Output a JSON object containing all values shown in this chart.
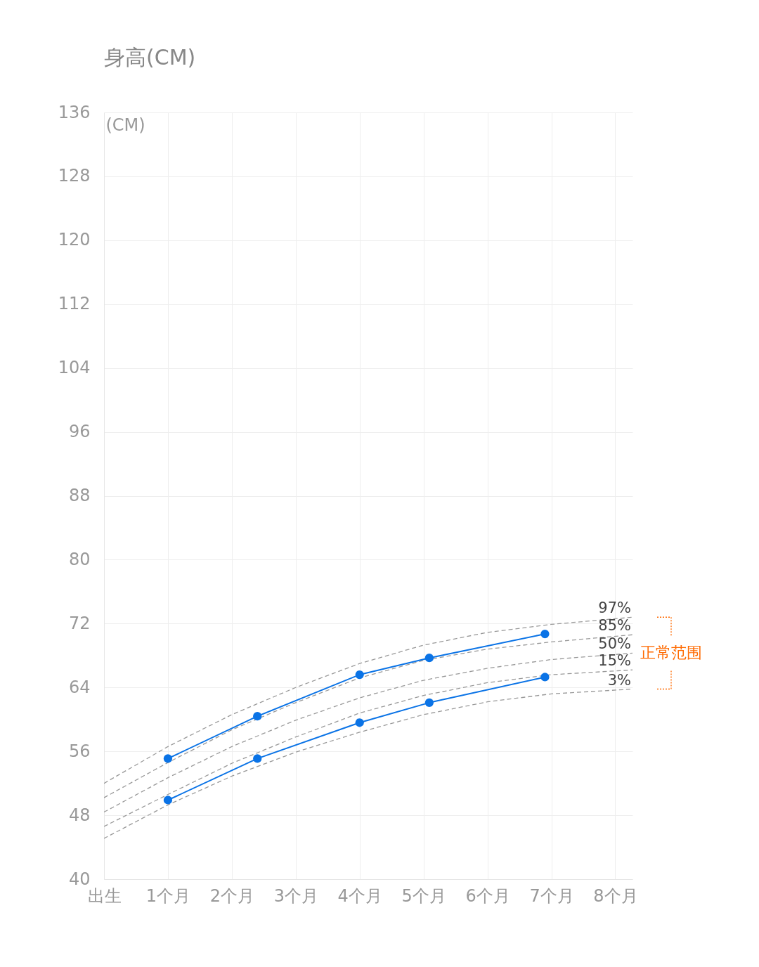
{
  "chart_data": {
    "type": "line",
    "title": "身高(CM)",
    "ylabel": "(CM)",
    "xlim": [
      0,
      8.27
    ],
    "xticks": [
      {
        "value": 0,
        "label": "出生"
      },
      {
        "value": 1,
        "label": "1个月"
      },
      {
        "value": 2,
        "label": "2个月"
      },
      {
        "value": 3,
        "label": "3个月"
      },
      {
        "value": 4,
        "label": "4个月"
      },
      {
        "value": 5,
        "label": "5个月"
      },
      {
        "value": 6,
        "label": "6个月"
      },
      {
        "value": 7,
        "label": "7个月"
      },
      {
        "value": 8,
        "label": "8个月"
      }
    ],
    "ylim": [
      40,
      136
    ],
    "yticks": [
      40,
      48,
      56,
      64,
      72,
      80,
      88,
      96,
      104,
      112,
      120,
      128,
      136
    ],
    "grid": true,
    "series": [
      {
        "name": "97%",
        "color": "#999999",
        "line_style": "dashed",
        "marker": "none",
        "x": [
          0,
          1,
          2,
          3,
          4,
          5,
          6,
          7,
          8.27
        ],
        "values": [
          52.0,
          56.6,
          60.6,
          64.0,
          67.0,
          69.3,
          70.9,
          71.9,
          72.8
        ]
      },
      {
        "name": "85%",
        "color": "#999999",
        "line_style": "dashed",
        "marker": "none",
        "x": [
          0,
          1,
          2,
          3,
          4,
          5,
          6,
          7,
          8.27
        ],
        "values": [
          50.2,
          54.6,
          58.7,
          62.1,
          65.2,
          67.4,
          68.8,
          69.7,
          70.6
        ]
      },
      {
        "name": "50%",
        "color": "#999999",
        "line_style": "dashed",
        "marker": "none",
        "x": [
          0,
          1,
          2,
          3,
          4,
          5,
          6,
          7,
          8.27
        ],
        "values": [
          48.4,
          52.7,
          56.6,
          59.9,
          62.7,
          64.9,
          66.4,
          67.5,
          68.3
        ]
      },
      {
        "name": "15%",
        "color": "#999999",
        "line_style": "dashed",
        "marker": "none",
        "x": [
          0,
          1,
          2,
          3,
          4,
          5,
          6,
          7,
          8.27
        ],
        "values": [
          46.6,
          50.6,
          54.5,
          57.8,
          60.8,
          63.0,
          64.6,
          65.6,
          66.2
        ]
      },
      {
        "name": "3%",
        "color": "#999999",
        "line_style": "dashed",
        "marker": "none",
        "x": [
          0,
          1,
          2,
          3,
          4,
          5,
          6,
          7,
          8.27
        ],
        "values": [
          45.1,
          49.3,
          52.9,
          55.9,
          58.4,
          60.6,
          62.2,
          63.2,
          63.8
        ]
      },
      {
        "color": "#0a73e6",
        "line_style": "solid",
        "marker": "circle",
        "x": [
          1,
          2.4,
          4,
          5.09,
          6.9
        ],
        "values": [
          55.1,
          60.4,
          65.6,
          67.7,
          70.7
        ]
      },
      {
        "color": "#0a73e6",
        "line_style": "solid",
        "marker": "circle",
        "x": [
          1,
          2.4,
          4,
          5.09,
          6.9
        ],
        "values": [
          49.9,
          55.1,
          59.6,
          62.1,
          65.3
        ]
      }
    ],
    "annotations": [
      "正常范围"
    ]
  }
}
